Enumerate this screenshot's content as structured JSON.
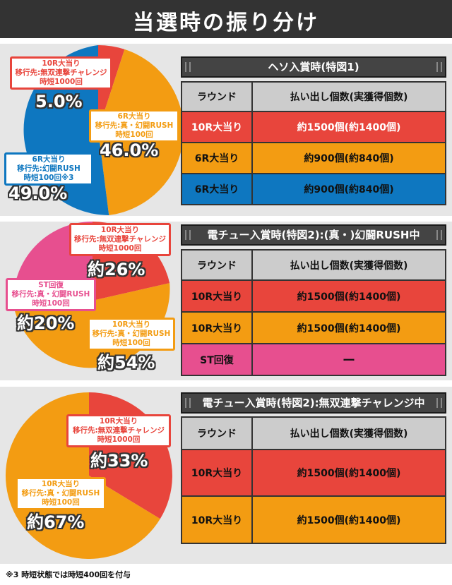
{
  "header": {
    "title": "当選時の振り分け"
  },
  "colors": {
    "red": "#e8453c",
    "orange": "#f39c12",
    "blue": "#0e77c0",
    "pink": "#e74f8f",
    "dark": "#333333",
    "panel": "#e6e6e6"
  },
  "sections": [
    {
      "table_title": "ヘソ入賞時(特図1)",
      "col_headers": [
        "ラウンド",
        "払い出し個数(実獲得個数)"
      ],
      "rows": [
        {
          "round": "10R大当り",
          "payout": "約1500個(約1400個)",
          "color": "#e8453c"
        },
        {
          "round": "6R大当り",
          "payout": "約900個(約840個)",
          "color": "#f39c12"
        },
        {
          "round": "6R大当り",
          "payout": "約900個(約840個)",
          "color": "#0e77c0"
        }
      ],
      "slices": [
        {
          "lines": [
            "10R大当り",
            "移行先:無双連撃チャレンジ",
            "時短1000回"
          ],
          "value": 5.0,
          "percent_label": "5.0%",
          "color": "#e8453c"
        },
        {
          "lines": [
            "6R大当り",
            "移行先:真・幻闘RUSH",
            "時短100回"
          ],
          "value": 46.0,
          "percent_label": "46.0%",
          "color": "#f39c12"
        },
        {
          "lines": [
            "6R大当り",
            "移行先:幻闘RUSH",
            "時短100回※3"
          ],
          "value": 49.0,
          "percent_label": "49.0%",
          "color": "#0e77c0"
        }
      ]
    },
    {
      "table_title": "電チュー入賞時(特図2):(真・)幻闘RUSH中",
      "col_headers": [
        "ラウンド",
        "払い出し個数(実獲得個数)"
      ],
      "rows": [
        {
          "round": "10R大当り",
          "payout": "約1500個(約1400個)",
          "color": "#e8453c"
        },
        {
          "round": "10R大当り",
          "payout": "約1500個(約1400個)",
          "color": "#f39c12"
        },
        {
          "round": "ST回復",
          "payout": "ー",
          "color": "#e74f8f"
        }
      ],
      "slices": [
        {
          "lines": [
            "10R大当り",
            "移行先:無双連撃チャレンジ",
            "時短1000回"
          ],
          "value": 26,
          "percent_label": "約26%",
          "color": "#e8453c"
        },
        {
          "lines": [
            "10R大当り",
            "移行先:真・幻闘RUSH",
            "時短100回"
          ],
          "value": 54,
          "percent_label": "約54%",
          "color": "#f39c12"
        },
        {
          "lines": [
            "ST回復",
            "移行先:真・幻闘RUSH",
            "時短100回"
          ],
          "value": 20,
          "percent_label": "約20%",
          "color": "#e74f8f"
        }
      ]
    },
    {
      "table_title": "電チュー入賞時(特図2):無双連撃チャレンジ中",
      "col_headers": [
        "ラウンド",
        "払い出し個数(実獲得個数)"
      ],
      "rows": [
        {
          "round": "10R大当り",
          "payout": "約1500個(約1400個)",
          "color": "#e8453c"
        },
        {
          "round": "10R大当り",
          "payout": "約1500個(約1400個)",
          "color": "#f39c12"
        }
      ],
      "slices": [
        {
          "lines": [
            "10R大当り",
            "移行先:無双連撃チャレンジ",
            "時短1000回"
          ],
          "value": 33,
          "percent_label": "約33%",
          "color": "#e8453c"
        },
        {
          "lines": [
            "10R大当り",
            "移行先:真・幻闘RUSH",
            "時短100回"
          ],
          "value": 67,
          "percent_label": "約67%",
          "color": "#f39c12"
        }
      ]
    }
  ],
  "footnote": "※3 時短状態では時短400回を付与"
}
